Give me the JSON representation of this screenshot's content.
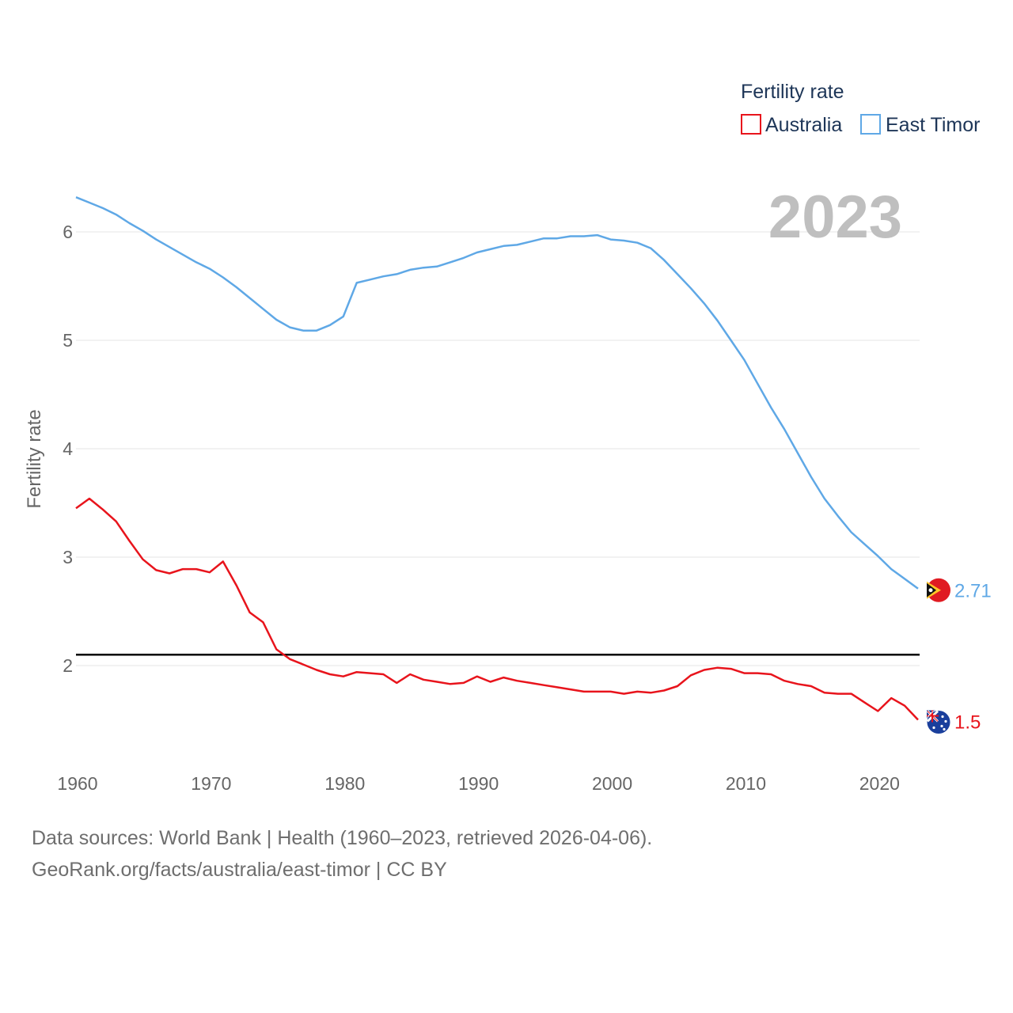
{
  "colors": {
    "australia": "#e8141c",
    "east_timor": "#5fa8e6",
    "reference_line": "#000000",
    "grid": "#e6e6e6",
    "year_label": "#bfbfbf"
  },
  "year_label": "2023",
  "source": {
    "line1": "Data sources: World Bank | Health (1960–2023, retrieved 2026-04-06).",
    "line2": "GeoRank.org/facts/australia/east-timor | CC BY"
  },
  "chart_data": {
    "type": "line",
    "title": "",
    "ylabel": "Fertility rate",
    "xlabel": "",
    "legend_title": "Fertility rate",
    "legend_position": "top-right",
    "xlim": [
      1960,
      2023
    ],
    "ylim": [
      1.3,
      6.5
    ],
    "x_ticks": [
      1960,
      1970,
      1980,
      1990,
      2000,
      2010,
      2020
    ],
    "y_ticks": [
      2,
      3,
      4,
      5,
      6
    ],
    "grid": true,
    "reference_line": {
      "y": 2.1
    },
    "x": [
      1960,
      1961,
      1962,
      1963,
      1964,
      1965,
      1966,
      1967,
      1968,
      1969,
      1970,
      1971,
      1972,
      1973,
      1974,
      1975,
      1976,
      1977,
      1978,
      1979,
      1980,
      1981,
      1982,
      1983,
      1984,
      1985,
      1986,
      1987,
      1988,
      1989,
      1990,
      1991,
      1992,
      1993,
      1994,
      1995,
      1996,
      1997,
      1998,
      1999,
      2000,
      2001,
      2002,
      2003,
      2004,
      2005,
      2006,
      2007,
      2008,
      2009,
      2010,
      2011,
      2012,
      2013,
      2014,
      2015,
      2016,
      2017,
      2018,
      2019,
      2020,
      2021,
      2022,
      2023
    ],
    "series": [
      {
        "name": "Australia",
        "color": "#e8141c",
        "end_label": "1.5",
        "flag": "australia-flag",
        "values": [
          3.45,
          3.54,
          3.44,
          3.33,
          3.15,
          2.98,
          2.88,
          2.85,
          2.89,
          2.89,
          2.86,
          2.96,
          2.74,
          2.49,
          2.4,
          2.15,
          2.06,
          2.01,
          1.96,
          1.92,
          1.9,
          1.94,
          1.93,
          1.92,
          1.84,
          1.92,
          1.87,
          1.85,
          1.83,
          1.84,
          1.9,
          1.85,
          1.89,
          1.86,
          1.84,
          1.82,
          1.8,
          1.78,
          1.76,
          1.76,
          1.76,
          1.74,
          1.76,
          1.75,
          1.77,
          1.81,
          1.91,
          1.96,
          1.98,
          1.97,
          1.93,
          1.93,
          1.92,
          1.86,
          1.83,
          1.81,
          1.75,
          1.74,
          1.74,
          1.66,
          1.58,
          1.7,
          1.63,
          1.5
        ]
      },
      {
        "name": "East Timor",
        "color": "#5fa8e6",
        "end_label": "2.71",
        "flag": "east-timor-flag",
        "values": [
          6.32,
          6.27,
          6.22,
          6.16,
          6.08,
          6.01,
          5.93,
          5.86,
          5.79,
          5.72,
          5.66,
          5.58,
          5.49,
          5.39,
          5.29,
          5.19,
          5.12,
          5.09,
          5.09,
          5.14,
          5.22,
          5.53,
          5.56,
          5.59,
          5.61,
          5.65,
          5.67,
          5.68,
          5.72,
          5.76,
          5.81,
          5.84,
          5.87,
          5.88,
          5.91,
          5.94,
          5.94,
          5.96,
          5.96,
          5.97,
          5.93,
          5.92,
          5.9,
          5.85,
          5.74,
          5.61,
          5.48,
          5.34,
          5.18,
          5.0,
          4.82,
          4.6,
          4.38,
          4.18,
          3.96,
          3.74,
          3.54,
          3.38,
          3.23,
          3.12,
          3.01,
          2.89,
          2.8,
          2.71
        ]
      }
    ]
  }
}
